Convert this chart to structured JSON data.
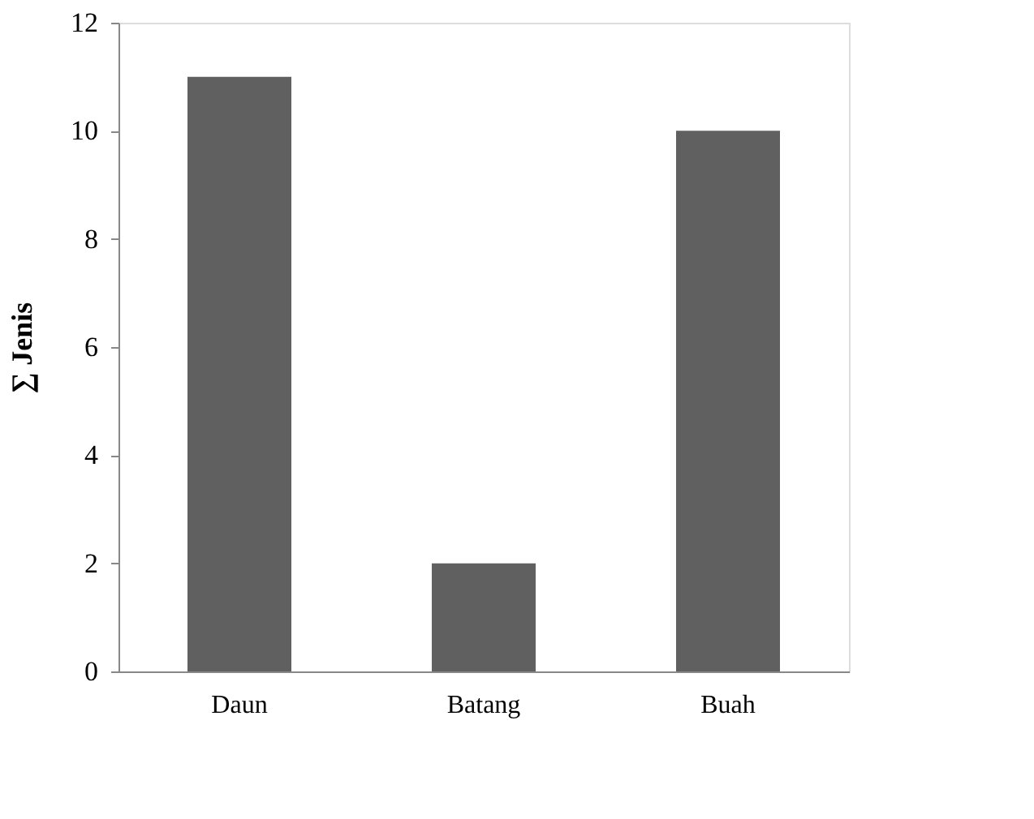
{
  "chart_data": {
    "type": "bar",
    "ylabel": "∑ Jenis",
    "categories": [
      "Daun",
      "Batang",
      "Buah"
    ],
    "values": [
      11,
      2,
      10
    ],
    "color": "#606060",
    "ylim": [
      0,
      12
    ],
    "yticks": [
      0,
      2,
      4,
      6,
      8,
      10,
      12
    ],
    "grid": false
  }
}
